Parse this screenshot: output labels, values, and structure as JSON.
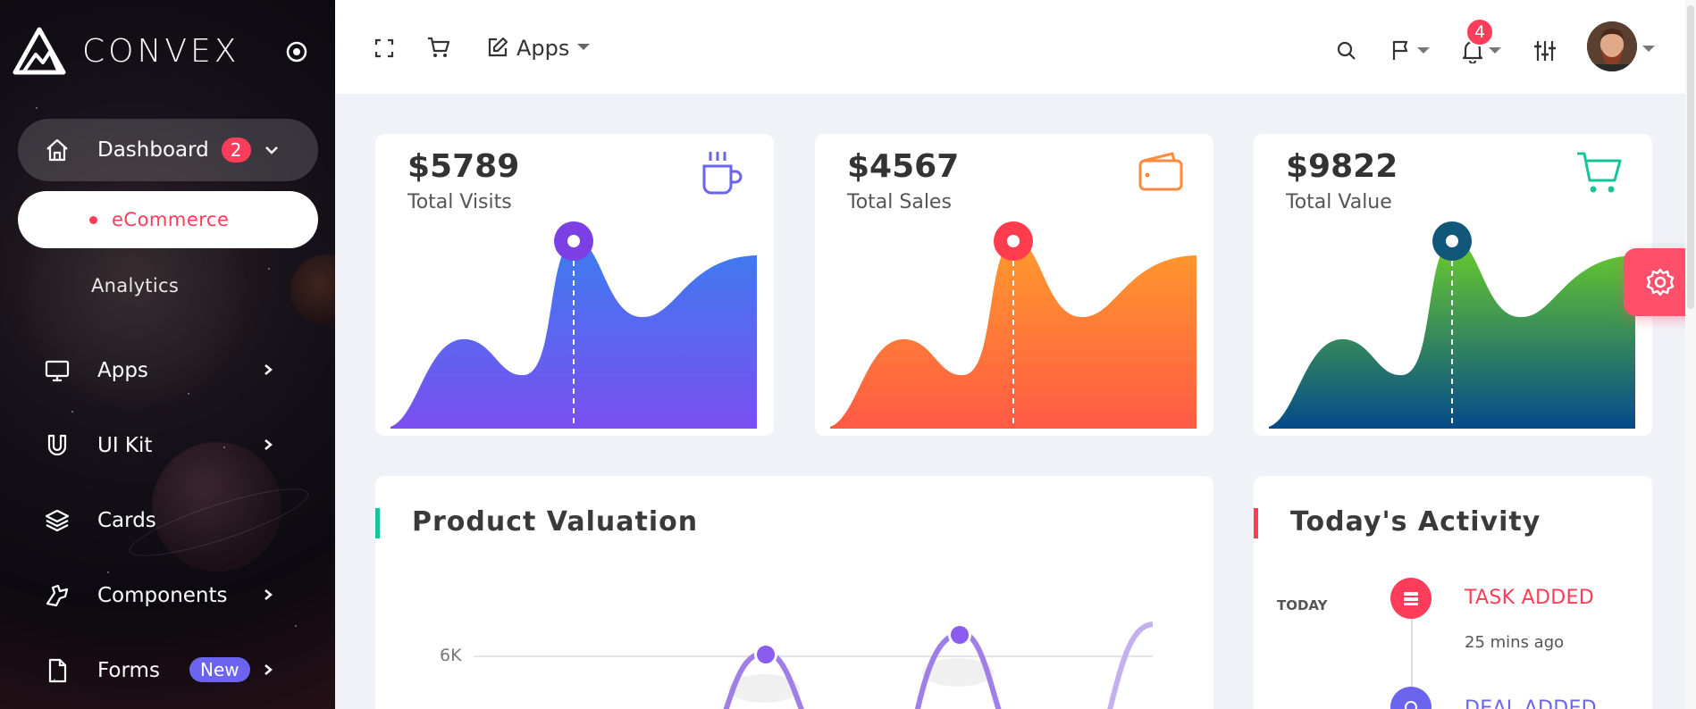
{
  "brand": {
    "name": "CONVEX"
  },
  "sidebar": {
    "dashboard": {
      "label": "Dashboard",
      "badge": "2"
    },
    "dashboard_sub": {
      "active": "eCommerce",
      "second": "Analytics"
    },
    "items": [
      {
        "label": "Apps",
        "icon": "monitor-icon"
      },
      {
        "label": "UI Kit",
        "icon": "magnet-icon"
      },
      {
        "label": "Cards",
        "icon": "layers-icon"
      },
      {
        "label": "Components",
        "icon": "puzzle-icon"
      },
      {
        "label": "Forms",
        "icon": "file-icon",
        "badge": "New"
      }
    ]
  },
  "header": {
    "apps_label": "Apps",
    "notification_count": "4"
  },
  "stats": [
    {
      "value": "$5789",
      "label": "Total Visits",
      "icon": "coffee-icon",
      "color": "#6a64ef"
    },
    {
      "value": "$4567",
      "label": "Total Sales",
      "icon": "wallet-icon",
      "color": "#ff8a3d"
    },
    {
      "value": "$9822",
      "label": "Total Value",
      "icon": "cart-icon",
      "color": "#19c39a"
    }
  ],
  "product_valuation": {
    "title": "Product Valuation",
    "y_tick": "6K"
  },
  "activity": {
    "title": "Today's Activity",
    "day": "TODAY",
    "items": [
      {
        "title": "TASK ADDED",
        "time": "25 mins ago",
        "color": "#ff3d5a"
      },
      {
        "title": "DEAL ADDED",
        "color": "#6a64ef"
      }
    ]
  },
  "colors": {
    "accent_red": "#ff3d5a",
    "accent_purple": "#6a64ef",
    "accent_green": "#19c39a"
  }
}
